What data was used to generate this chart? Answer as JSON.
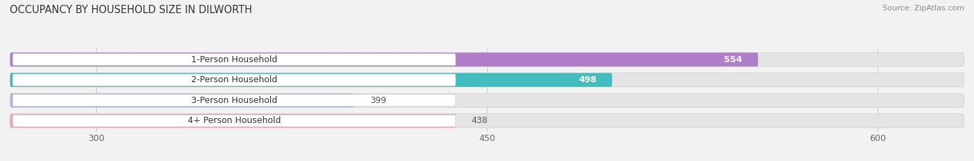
{
  "title": "OCCUPANCY BY HOUSEHOLD SIZE IN DILWORTH",
  "source": "Source: ZipAtlas.com",
  "categories": [
    "1-Person Household",
    "2-Person Household",
    "3-Person Household",
    "4+ Person Household"
  ],
  "values": [
    554,
    498,
    399,
    438
  ],
  "bar_colors": [
    "#b07ec8",
    "#42bcbe",
    "#b0b4e0",
    "#f4a0b8"
  ],
  "xlim": [
    265,
    635
  ],
  "xticks": [
    300,
    450,
    600
  ],
  "bar_height": 0.68,
  "figsize": [
    14.06,
    2.33
  ],
  "dpi": 100,
  "bg_color": "#f2f2f2",
  "bar_bg_color": "#e4e4e4",
  "label_bg_color": "#ffffff",
  "label_color_inside": "#ffffff",
  "label_color_outside": "#555555",
  "title_fontsize": 10.5,
  "source_fontsize": 8,
  "tick_fontsize": 9,
  "bar_label_fontsize": 9,
  "category_fontsize": 9
}
